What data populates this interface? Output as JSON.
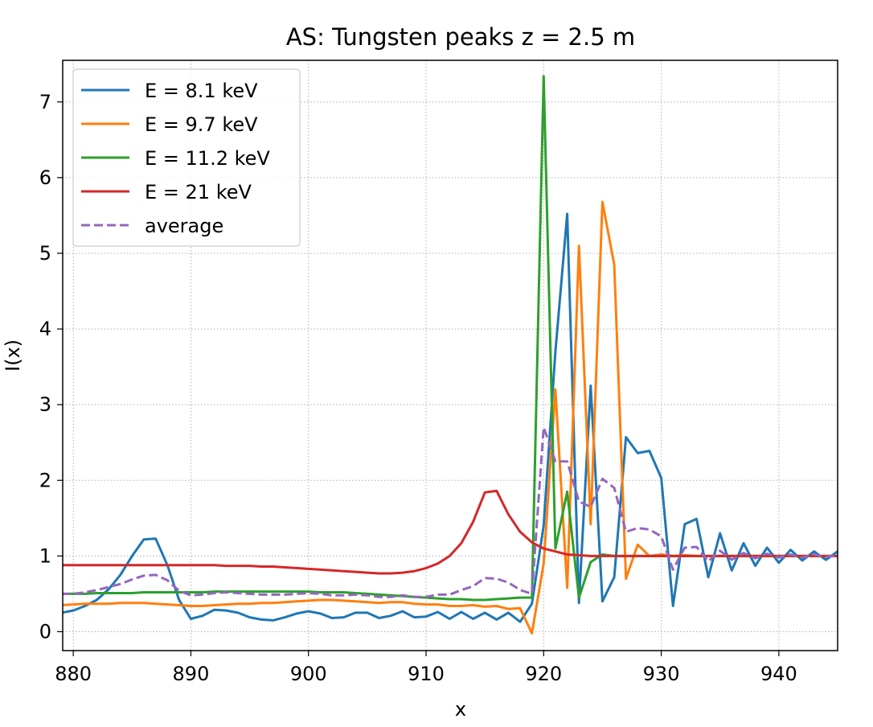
{
  "chart_data": {
    "type": "line",
    "title": "AS: Tungsten peaks z = 2.5 m",
    "xlabel": "x",
    "ylabel": "I(x)",
    "xlim": [
      879.1,
      945
    ],
    "ylim": [
      -0.25,
      7.55
    ],
    "xticks": [
      880,
      890,
      900,
      910,
      920,
      930,
      940
    ],
    "yticks": [
      0,
      1,
      2,
      3,
      4,
      5,
      6,
      7
    ],
    "grid": true,
    "grid_style": "dotted",
    "legend_position": "top-left",
    "x": [
      879,
      880,
      881,
      882,
      883,
      884,
      885,
      886,
      887,
      888,
      889,
      890,
      891,
      892,
      893,
      894,
      895,
      896,
      897,
      898,
      899,
      900,
      901,
      902,
      903,
      904,
      905,
      906,
      907,
      908,
      909,
      910,
      911,
      912,
      913,
      914,
      915,
      916,
      917,
      918,
      919,
      920,
      921,
      922,
      923,
      924,
      925,
      926,
      927,
      928,
      929,
      930,
      931,
      932,
      933,
      934,
      935,
      936,
      937,
      938,
      939,
      940,
      941,
      942,
      943,
      944,
      945
    ],
    "series": [
      {
        "name": "E = 8.1 keV",
        "color": "#1f77b4",
        "style": "solid",
        "values": [
          0.25,
          0.28,
          0.34,
          0.42,
          0.56,
          0.75,
          1.0,
          1.22,
          1.23,
          0.88,
          0.42,
          0.17,
          0.21,
          0.29,
          0.28,
          0.25,
          0.19,
          0.16,
          0.15,
          0.19,
          0.24,
          0.27,
          0.24,
          0.18,
          0.19,
          0.25,
          0.25,
          0.18,
          0.21,
          0.27,
          0.19,
          0.2,
          0.26,
          0.17,
          0.26,
          0.17,
          0.25,
          0.16,
          0.25,
          0.13,
          0.37,
          1.4,
          3.7,
          5.52,
          0.38,
          3.25,
          0.4,
          0.72,
          2.57,
          2.36,
          2.39,
          2.03,
          0.34,
          1.42,
          1.49,
          0.72,
          1.3,
          0.81,
          1.17,
          0.87,
          1.11,
          0.91,
          1.08,
          0.94,
          1.06,
          0.95,
          1.06
        ]
      },
      {
        "name": "E = 9.7 keV",
        "color": "#ff7f0e",
        "style": "solid",
        "values": [
          0.35,
          0.36,
          0.37,
          0.37,
          0.37,
          0.38,
          0.38,
          0.38,
          0.37,
          0.36,
          0.35,
          0.34,
          0.34,
          0.35,
          0.36,
          0.37,
          0.37,
          0.38,
          0.38,
          0.39,
          0.4,
          0.41,
          0.42,
          0.42,
          0.41,
          0.4,
          0.39,
          0.38,
          0.39,
          0.39,
          0.37,
          0.36,
          0.36,
          0.34,
          0.34,
          0.35,
          0.33,
          0.34,
          0.3,
          0.31,
          -0.02,
          0.9,
          3.2,
          0.58,
          5.1,
          1.42,
          5.68,
          4.85,
          0.7,
          1.15,
          1.0,
          1.02,
          1.0,
          1.01,
          1.0,
          1.0,
          1.0,
          1.0,
          1.0,
          1.0,
          1.0,
          1.0,
          1.0,
          1.0,
          1.0,
          1.0,
          1.0
        ]
      },
      {
        "name": "E = 11.2 keV",
        "color": "#2ca02c",
        "style": "solid",
        "values": [
          0.5,
          0.5,
          0.5,
          0.51,
          0.51,
          0.51,
          0.51,
          0.52,
          0.52,
          0.52,
          0.52,
          0.52,
          0.52,
          0.53,
          0.53,
          0.53,
          0.53,
          0.53,
          0.53,
          0.53,
          0.53,
          0.53,
          0.52,
          0.52,
          0.52,
          0.51,
          0.5,
          0.49,
          0.48,
          0.47,
          0.46,
          0.45,
          0.44,
          0.43,
          0.43,
          0.42,
          0.42,
          0.43,
          0.44,
          0.45,
          0.45,
          7.34,
          1.1,
          1.85,
          0.45,
          0.92,
          1.02,
          1.0,
          1.0,
          1.0,
          1.0,
          1.0,
          1.0,
          1.0,
          1.0,
          1.0,
          1.0,
          1.0,
          1.0,
          1.0,
          1.0,
          1.0,
          1.0,
          1.0,
          1.0,
          1.0,
          1.0
        ]
      },
      {
        "name": "E = 21 keV",
        "color": "#d62728",
        "style": "solid",
        "values": [
          0.88,
          0.88,
          0.88,
          0.88,
          0.88,
          0.88,
          0.88,
          0.88,
          0.88,
          0.88,
          0.88,
          0.88,
          0.88,
          0.88,
          0.87,
          0.87,
          0.87,
          0.86,
          0.86,
          0.85,
          0.84,
          0.83,
          0.82,
          0.81,
          0.8,
          0.79,
          0.78,
          0.77,
          0.77,
          0.78,
          0.8,
          0.84,
          0.9,
          1.0,
          1.17,
          1.45,
          1.84,
          1.86,
          1.55,
          1.32,
          1.18,
          1.1,
          1.06,
          1.02,
          1.01,
          1.0,
          1.0,
          1.0,
          1.0,
          1.0,
          1.0,
          1.0,
          1.0,
          1.0,
          1.0,
          1.0,
          1.0,
          1.0,
          1.0,
          1.0,
          1.0,
          1.0,
          1.0,
          1.0,
          1.0,
          1.0,
          1.0
        ]
      },
      {
        "name": "average",
        "color": "#9467bd",
        "style": "dashed",
        "values": [
          0.5,
          0.5,
          0.52,
          0.55,
          0.59,
          0.63,
          0.69,
          0.74,
          0.75,
          0.68,
          0.54,
          0.48,
          0.49,
          0.51,
          0.52,
          0.51,
          0.5,
          0.49,
          0.49,
          0.49,
          0.5,
          0.51,
          0.5,
          0.48,
          0.48,
          0.49,
          0.48,
          0.46,
          0.46,
          0.48,
          0.46,
          0.46,
          0.49,
          0.49,
          0.55,
          0.6,
          0.71,
          0.7,
          0.65,
          0.55,
          0.5,
          2.7,
          2.25,
          2.25,
          1.72,
          1.65,
          2.02,
          1.9,
          1.32,
          1.37,
          1.35,
          1.26,
          0.82,
          1.11,
          1.12,
          0.93,
          1.07,
          0.95,
          1.04,
          0.97,
          1.03,
          0.98,
          1.02,
          0.98,
          1.02,
          0.99,
          1.01
        ]
      }
    ]
  }
}
